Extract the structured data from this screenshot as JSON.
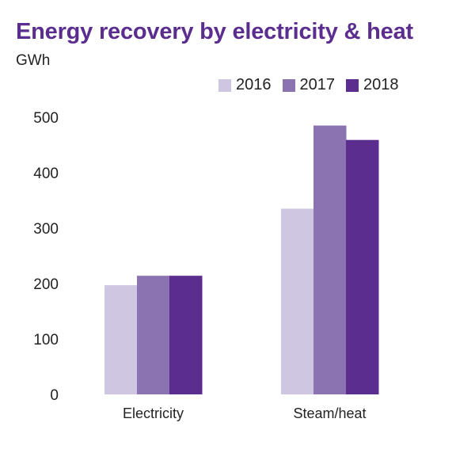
{
  "chart_data": {
    "type": "bar",
    "title": "Energy recovery by electricity & heat",
    "ylabel": "GWh",
    "xlabel": "",
    "categories": [
      "Electricity",
      "Steam/heat"
    ],
    "series": [
      {
        "name": "2016",
        "values": [
          197,
          335
        ],
        "color": "#cfc6e1"
      },
      {
        "name": "2017",
        "values": [
          214,
          485
        ],
        "color": "#8b73b1"
      },
      {
        "name": "2018",
        "values": [
          214,
          459
        ],
        "color": "#5b2d8e"
      }
    ],
    "ylim": [
      0,
      500
    ],
    "yticks": [
      0,
      100,
      200,
      300,
      400,
      500
    ],
    "grid": false,
    "legend_position": "top-right"
  }
}
